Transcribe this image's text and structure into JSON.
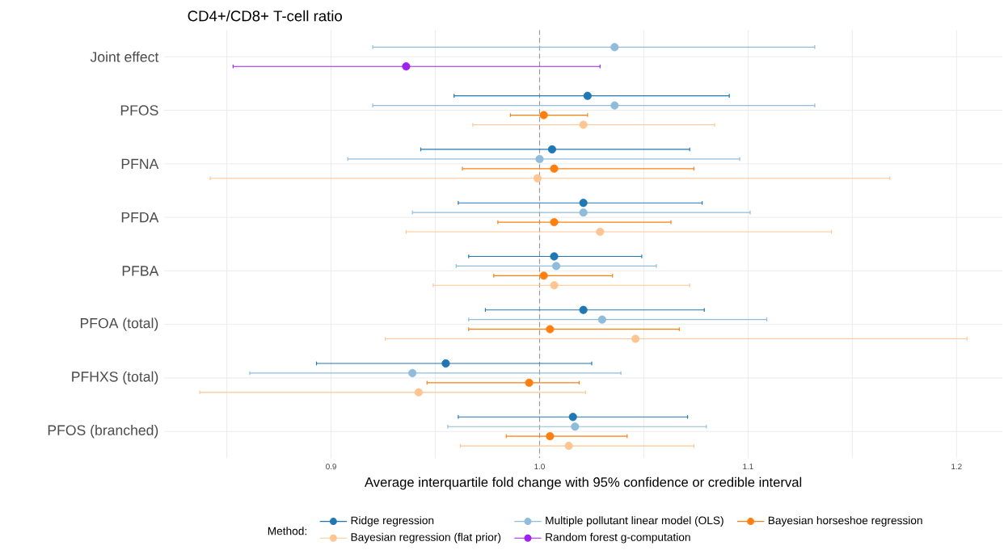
{
  "chart_data": {
    "type": "scatter",
    "orientation": "horizontal",
    "title": "CD4+/CD8+ T-cell ratio",
    "xlabel": "Average interquartile fold change with 95% confidence or credible interval",
    "legend_title": "Method:",
    "categories": [
      "Joint effect",
      "PFOS",
      "PFNA",
      "PFDA",
      "PFBA",
      "PFOA (total)",
      "PFHXS (total)",
      "PFOS (branched)"
    ],
    "xlim": [
      0.82,
      1.222
    ],
    "xticks": [
      {
        "value": 0.85,
        "label": null
      },
      {
        "value": 0.9,
        "label": "0.9"
      },
      {
        "value": 0.95,
        "label": null
      },
      {
        "value": 1.0,
        "label": "1.0"
      },
      {
        "value": 1.05,
        "label": null
      },
      {
        "value": 1.1,
        "label": "1.1"
      },
      {
        "value": 1.15,
        "label": null
      },
      {
        "value": 1.2,
        "label": "1.2"
      }
    ],
    "grid": true,
    "legend": "bottom",
    "marker": "circle",
    "ref_lines": [
      {
        "axis": "x",
        "value": 1.0,
        "color": "#999999",
        "line_style": "dashed"
      }
    ],
    "series": [
      {
        "name": "Ridge regression",
        "color": "#1f77b4",
        "values": [
          null,
          1.023,
          1.006,
          1.021,
          1.007,
          1.021,
          0.955,
          1.016
        ],
        "errors": [
          null,
          [
            0.959,
            1.091
          ],
          [
            0.943,
            1.072
          ],
          [
            0.961,
            1.078
          ],
          [
            0.966,
            1.049
          ],
          [
            0.974,
            1.079
          ],
          [
            0.893,
            1.025
          ],
          [
            0.961,
            1.071
          ]
        ]
      },
      {
        "name": "Multiple pollutant linear model (OLS)",
        "color": "#8fbcdb",
        "values": [
          1.036,
          1.036,
          1.0,
          1.021,
          1.008,
          1.03,
          0.939,
          1.017
        ],
        "errors": [
          [
            0.92,
            1.132
          ],
          [
            0.92,
            1.132
          ],
          [
            0.908,
            1.096
          ],
          [
            0.939,
            1.101
          ],
          [
            0.96,
            1.056
          ],
          [
            0.966,
            1.109
          ],
          [
            0.861,
            1.039
          ],
          [
            0.956,
            1.08
          ]
        ]
      },
      {
        "name": "Bayesian horseshoe regression",
        "color": "#ff7f0e",
        "values": [
          null,
          1.002,
          1.007,
          1.007,
          1.002,
          1.005,
          0.995,
          1.005
        ],
        "errors": [
          null,
          [
            0.986,
            1.023
          ],
          [
            0.963,
            1.074
          ],
          [
            0.98,
            1.063
          ],
          [
            0.978,
            1.035
          ],
          [
            0.966,
            1.067
          ],
          [
            0.946,
            1.019
          ],
          [
            0.984,
            1.042
          ]
        ]
      },
      {
        "name": "Bayesian regression (flat prior)",
        "color": "#ffc592",
        "values": [
          null,
          1.021,
          0.999,
          1.029,
          1.007,
          1.046,
          0.942,
          1.014
        ],
        "errors": [
          null,
          [
            0.968,
            1.084
          ],
          [
            0.842,
            1.168
          ],
          [
            0.936,
            1.14
          ],
          [
            0.949,
            1.072
          ],
          [
            0.926,
            1.205
          ],
          [
            0.837,
            1.022
          ],
          [
            0.962,
            1.074
          ]
        ]
      },
      {
        "name": "Random forest g-computation",
        "color": "#a020f0",
        "values": [
          0.936,
          null,
          null,
          null,
          null,
          null,
          null,
          null
        ],
        "errors": [
          [
            0.853,
            1.029
          ],
          null,
          null,
          null,
          null,
          null,
          null,
          null
        ]
      }
    ]
  }
}
